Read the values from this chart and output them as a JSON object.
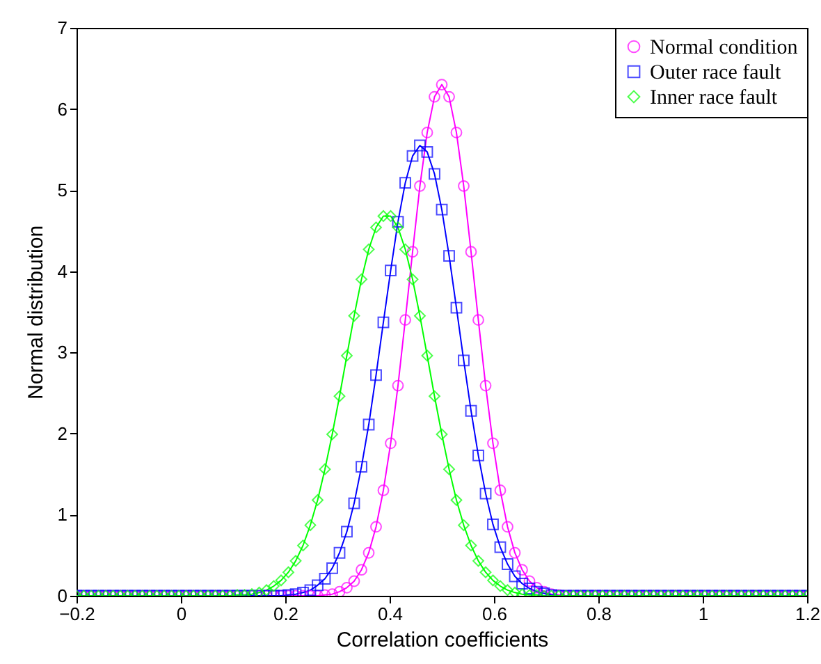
{
  "chart_data": {
    "type": "line",
    "xlabel": "Correlation coefficients",
    "ylabel": "Normal distribution",
    "x": [
      -0.2,
      -0.186,
      -0.172,
      -0.158,
      -0.144,
      -0.13,
      -0.116,
      -0.102,
      -0.088,
      -0.074,
      -0.06,
      -0.046,
      -0.032,
      -0.018,
      -0.004,
      0.01,
      0.024,
      0.038,
      0.052,
      0.066,
      0.08,
      0.094,
      0.108,
      0.122,
      0.136,
      0.15,
      0.164,
      0.178,
      0.192,
      0.206,
      0.22,
      0.234,
      0.248,
      0.262,
      0.276,
      0.29,
      0.304,
      0.318,
      0.332,
      0.346,
      0.36,
      0.374,
      0.388,
      0.402,
      0.416,
      0.43,
      0.444,
      0.458,
      0.472,
      0.486,
      0.5,
      0.514,
      0.528,
      0.542,
      0.556,
      0.57,
      0.584,
      0.598,
      0.612,
      0.626,
      0.64,
      0.654,
      0.668,
      0.682,
      0.696,
      0.71,
      0.724,
      0.738,
      0.752,
      0.766,
      0.78,
      0.794,
      0.808,
      0.822,
      0.836,
      0.85,
      0.864,
      0.878,
      0.892,
      0.906,
      0.92,
      0.934,
      0.948,
      0.962,
      0.976,
      0.99,
      1.004,
      1.018,
      1.032,
      1.046,
      1.06,
      1.074,
      1.088,
      1.102,
      1.116,
      1.13,
      1.144,
      1.158,
      1.172,
      1.186,
      1.2
    ],
    "series": [
      {
        "name": "Normal condition",
        "color": "#ff00ff",
        "marker": "circle",
        "values": [
          0,
          0,
          0,
          0,
          0,
          0,
          0,
          0,
          0,
          0,
          0,
          0,
          0,
          0,
          0,
          0,
          0,
          0,
          0,
          0,
          0,
          0,
          0,
          0,
          0,
          0,
          0,
          0,
          0,
          0,
          0,
          0,
          0,
          0,
          0.01,
          0.02,
          0.05,
          0.1,
          0.18,
          0.32,
          0.53,
          0.85,
          1.3,
          1.88,
          2.59,
          3.4,
          4.24,
          5.05,
          5.71,
          6.15,
          6.3,
          6.15,
          5.71,
          5.05,
          4.24,
          3.4,
          2.59,
          1.88,
          1.3,
          0.85,
          0.53,
          0.32,
          0.18,
          0.1,
          0.05,
          0.02,
          0.01,
          0,
          0,
          0,
          0,
          0,
          0,
          0,
          0,
          0,
          0,
          0,
          0,
          0,
          0,
          0,
          0,
          0,
          0,
          0,
          0,
          0,
          0,
          0,
          0,
          0,
          0,
          0,
          0,
          0,
          0,
          0,
          0,
          0,
          0
        ]
      },
      {
        "name": "Outer race fault",
        "color": "#0000ff",
        "marker": "square",
        "values": [
          0,
          0,
          0,
          0,
          0,
          0,
          0,
          0,
          0,
          0,
          0,
          0,
          0,
          0,
          0,
          0,
          0,
          0,
          0,
          0,
          0,
          0,
          0,
          0,
          0,
          0,
          0,
          0,
          0,
          0.01,
          0.02,
          0.04,
          0.07,
          0.13,
          0.21,
          0.34,
          0.53,
          0.79,
          1.14,
          1.59,
          2.11,
          2.72,
          3.37,
          4.01,
          4.61,
          5.09,
          5.42,
          5.55,
          5.47,
          5.2,
          4.76,
          4.19,
          3.55,
          2.9,
          2.28,
          1.73,
          1.26,
          0.88,
          0.6,
          0.39,
          0.24,
          0.15,
          0.09,
          0.05,
          0.03,
          0.01,
          0,
          0,
          0,
          0,
          0,
          0,
          0,
          0,
          0,
          0,
          0,
          0,
          0,
          0,
          0,
          0,
          0,
          0,
          0,
          0,
          0,
          0,
          0,
          0,
          0,
          0,
          0,
          0,
          0,
          0,
          0,
          0,
          0,
          0,
          0
        ]
      },
      {
        "name": "Inner race fault",
        "color": "#00ff00",
        "marker": "diamond",
        "values": [
          0,
          0,
          0,
          0,
          0,
          0,
          0,
          0,
          0,
          0,
          0,
          0,
          0,
          0,
          0,
          0,
          0,
          0,
          0,
          0,
          0,
          0,
          0.01,
          0.01,
          0.02,
          0.04,
          0.07,
          0.12,
          0.19,
          0.29,
          0.43,
          0.62,
          0.87,
          1.18,
          1.56,
          1.99,
          2.46,
          2.96,
          3.45,
          3.9,
          4.27,
          4.54,
          4.68,
          4.68,
          4.54,
          4.27,
          3.9,
          3.45,
          2.96,
          2.46,
          1.99,
          1.56,
          1.18,
          0.87,
          0.62,
          0.43,
          0.29,
          0.19,
          0.12,
          0.07,
          0.04,
          0.02,
          0.01,
          0.01,
          0,
          0,
          0,
          0,
          0,
          0,
          0,
          0,
          0,
          0,
          0,
          0,
          0,
          0,
          0,
          0,
          0,
          0,
          0,
          0,
          0,
          0,
          0,
          0,
          0,
          0,
          0,
          0,
          0,
          0,
          0,
          0,
          0,
          0,
          0,
          0,
          0
        ]
      }
    ],
    "xlim": [
      -0.2,
      1.2
    ],
    "xticks": [
      -0.2,
      0,
      0.2,
      0.4,
      0.6,
      0.8,
      1,
      1.2
    ],
    "ylim": [
      0,
      7
    ],
    "yticks": [
      0,
      1,
      2,
      3,
      4,
      5,
      6,
      7
    ],
    "legend": "top right",
    "line_style": "solid"
  }
}
